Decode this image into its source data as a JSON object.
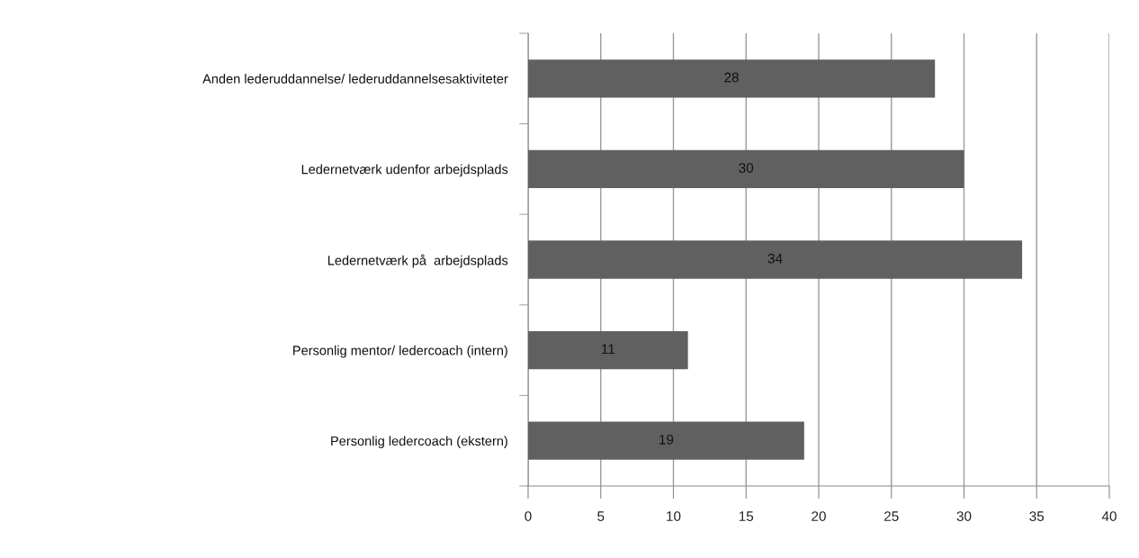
{
  "chart_data": {
    "type": "bar",
    "orientation": "horizontal",
    "categories": [
      "Anden lederuddannelse/ lederuddannelsesaktiviteter",
      "Ledernetværk udenfor arbejdsplads",
      "Ledernetværk på  arbejdsplads",
      "Personlig mentor/ ledercoach (intern)",
      "Personlig ledercoach (ekstern)"
    ],
    "values": [
      28,
      30,
      34,
      11,
      19
    ],
    "color": "#606060",
    "xlim": [
      0,
      40
    ],
    "xticks": [
      0,
      5,
      10,
      15,
      20,
      25,
      30,
      35,
      40
    ],
    "grid": "x",
    "data_labels": true,
    "legend": false
  }
}
